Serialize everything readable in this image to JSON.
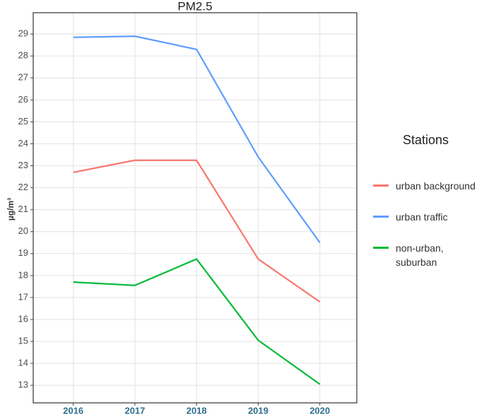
{
  "chart_data": {
    "type": "line",
    "title": "PM2.5",
    "ylabel": "µg/m³",
    "x": [
      2016,
      2017,
      2018,
      2019,
      2020
    ],
    "xlim": [
      2015.35,
      2020.6
    ],
    "xticks": [
      2016,
      2017,
      2018,
      2019,
      2020
    ],
    "ylim": [
      12.2,
      29.97
    ],
    "yticks": [
      13,
      14,
      15,
      16,
      17,
      18,
      19,
      20,
      21,
      22,
      23,
      24,
      25,
      26,
      27,
      28,
      29
    ],
    "grid": true,
    "legend_title": "Stations",
    "legend_position": "right",
    "series": [
      {
        "name": "urban background",
        "color": "#F8766D",
        "values": [
          22.7,
          23.25,
          23.25,
          18.75,
          16.8
        ]
      },
      {
        "name": "urban traffic",
        "color": "#619CFF",
        "values": [
          28.85,
          28.9,
          28.3,
          23.4,
          19.5
        ]
      },
      {
        "name": "non-urban, suburban",
        "color": "#00BA38",
        "values": [
          17.7,
          17.55,
          18.75,
          15.05,
          13.05
        ]
      }
    ]
  }
}
